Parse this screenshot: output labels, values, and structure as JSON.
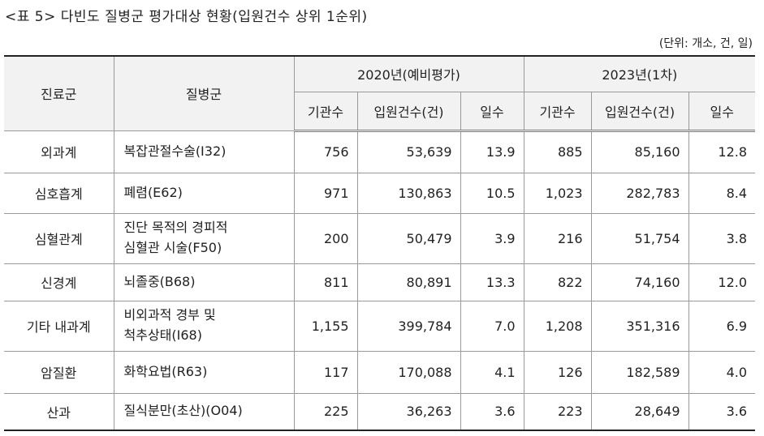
{
  "title": "<표 5> 다빈도 질병군 평가대상 현황(입원건수 상위 1순위)",
  "unit": "(단위: 개소, 건, 일)",
  "table": {
    "header": {
      "group": "진료군",
      "disease": "질병군",
      "periods": [
        "2020년(예비평가)",
        "2023년(1차)"
      ],
      "columns": [
        "기관수",
        "입원건수(건)",
        "일수",
        "기관수",
        "입원건수(건)",
        "일수"
      ]
    },
    "rows": [
      [
        "외과계",
        "복잡관절수술(I32)",
        "756",
        "53,639",
        "13.9",
        "885",
        "85,160",
        "12.8"
      ],
      [
        "심호흡계",
        "폐렴(E62)",
        "971",
        "130,863",
        "10.5",
        "1,023",
        "282,783",
        "8.4"
      ],
      [
        "심혈관계",
        "진단 목적의 경피적\n심혈관 시술(F50)",
        "200",
        "50,479",
        "3.9",
        "216",
        "51,754",
        "3.8"
      ],
      [
        "신경계",
        "뇌졸중(B68)",
        "811",
        "80,891",
        "13.3",
        "822",
        "74,160",
        "12.0"
      ],
      [
        "기타 내과계",
        "비외과적 경부 및\n척추상태(I68)",
        "1,155",
        "399,784",
        "7.0",
        "1,208",
        "351,316",
        "6.9"
      ],
      [
        "암질환",
        "화학요법(R63)",
        "117",
        "170,088",
        "4.1",
        "126",
        "182,589",
        "4.0"
      ],
      [
        "산과",
        "질식분만(초산)(O04)",
        "225",
        "36,263",
        "3.6",
        "223",
        "28,649",
        "3.6"
      ]
    ]
  }
}
